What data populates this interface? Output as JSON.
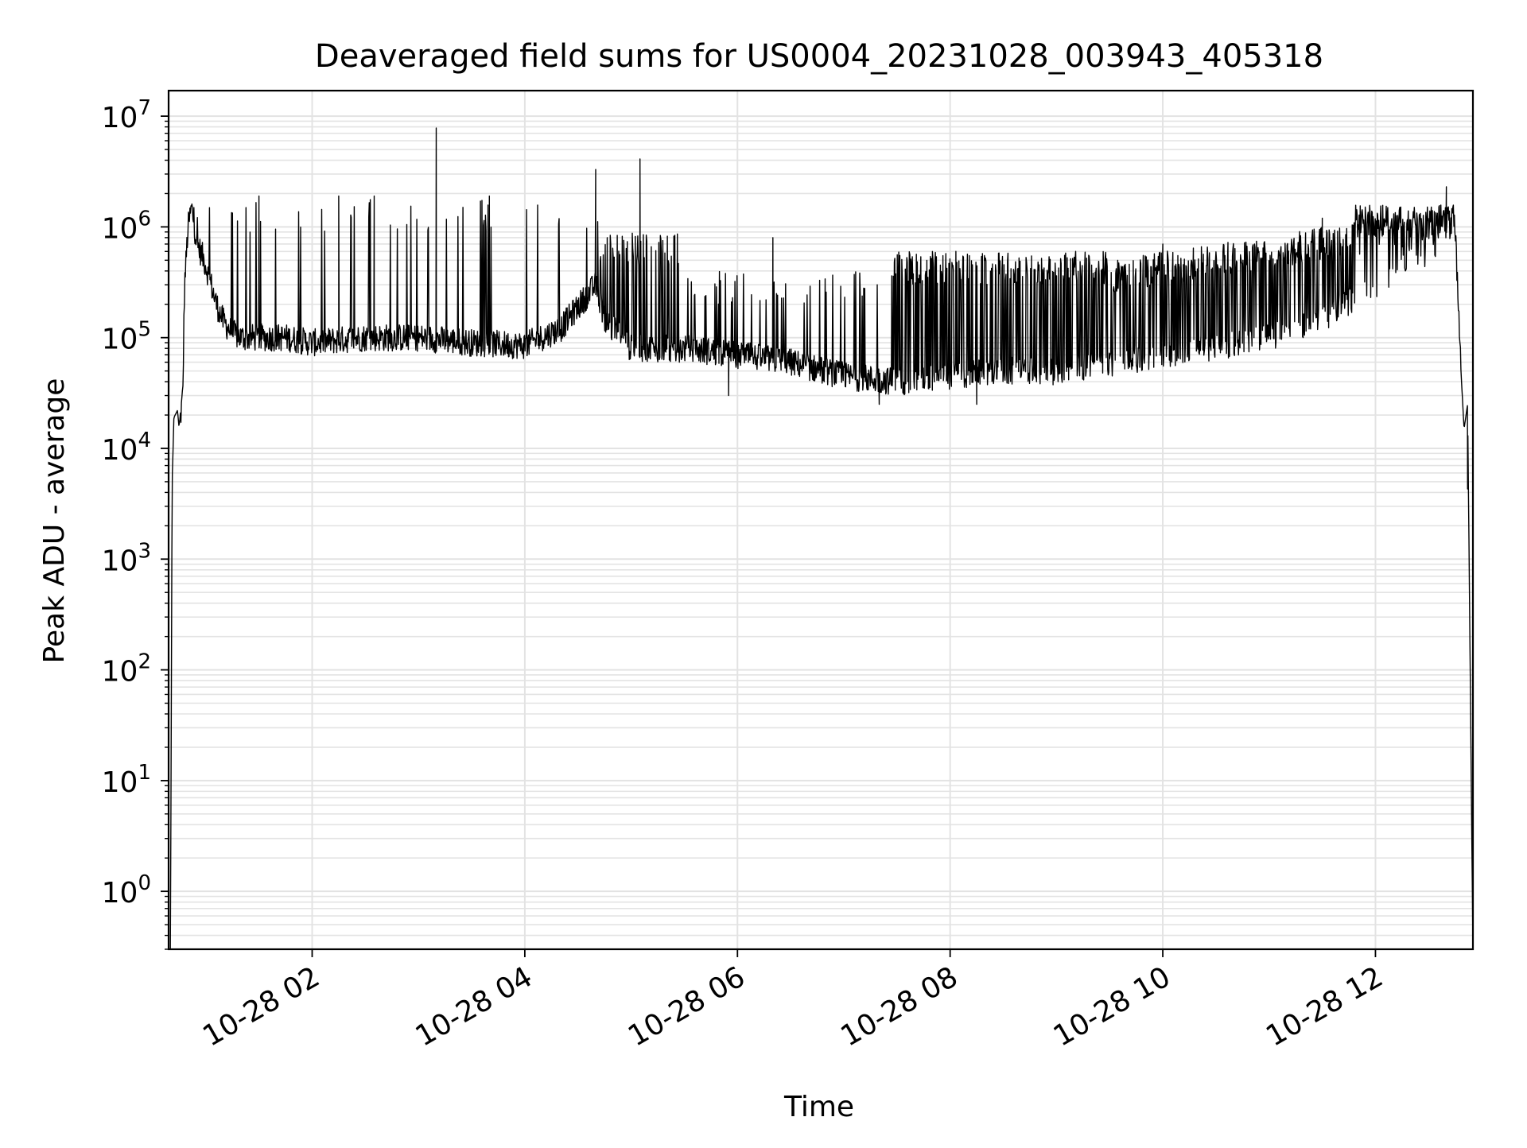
{
  "chart_data": {
    "type": "line",
    "title": "Deaveraged field sums for US0004_20231028_003943_405318",
    "xlabel": "Time",
    "ylabel": "Peak ADU - average",
    "x_is_time": true,
    "xlim": [
      "2023-10-28 00:39",
      "2023-10-28 12:55"
    ],
    "ylim": [
      0.3,
      17000000
    ],
    "yscale": "log",
    "grid": true,
    "minor_grid": true,
    "line_color": "#000000",
    "grid_color": "#e3e3e3",
    "x_tick_labels": [
      "10-28 02",
      "10-28 04",
      "10-28 06",
      "10-28 08",
      "10-28 10",
      "10-28 12"
    ],
    "x_ticks": [
      "2023-10-28 02:00",
      "2023-10-28 04:00",
      "2023-10-28 06:00",
      "2023-10-28 08:00",
      "2023-10-28 10:00",
      "2023-10-28 12:00"
    ],
    "y_ticks": [
      1,
      10,
      100,
      1000,
      10000,
      100000,
      1000000,
      10000000
    ],
    "y_tick_labels": [
      {
        "base": "10",
        "exp": "0"
      },
      {
        "base": "10",
        "exp": "1"
      },
      {
        "base": "10",
        "exp": "2"
      },
      {
        "base": "10",
        "exp": "3"
      },
      {
        "base": "10",
        "exp": "4"
      },
      {
        "base": "10",
        "exp": "5"
      },
      {
        "base": "10",
        "exp": "6"
      },
      {
        "base": "10",
        "exp": "7"
      }
    ],
    "series": [
      {
        "x": [
          "2023-10-28 00:40",
          "2023-10-28 00:41",
          "2023-10-28 00:42",
          "2023-10-28 00:44",
          "2023-10-28 00:45",
          "2023-10-28 00:47",
          "2023-10-28 00:48",
          "2023-10-28 00:50",
          "2023-10-28 00:52",
          "2023-10-28 00:55",
          "2023-10-28 00:58",
          "2023-10-28 01:00",
          "2023-10-28 01:03",
          "2023-10-28 01:06",
          "2023-10-28 01:10",
          "2023-10-28 01:15",
          "2023-10-28 01:20",
          "2023-10-28 01:30",
          "2023-10-28 01:45",
          "2023-10-28 02:00",
          "2023-10-28 02:30",
          "2023-10-28 03:00",
          "2023-10-28 03:15",
          "2023-10-28 03:30",
          "2023-10-28 04:00",
          "2023-10-28 04:20",
          "2023-10-28 04:40",
          "2023-10-28 04:45",
          "2023-10-28 05:00",
          "2023-10-28 05:30",
          "2023-10-28 06:00",
          "2023-10-28 06:30",
          "2023-10-28 07:00",
          "2023-10-28 07:30",
          "2023-10-28 08:00",
          "2023-10-28 08:30",
          "2023-10-28 09:00",
          "2023-10-28 10:00",
          "2023-10-28 11:00",
          "2023-10-28 11:30",
          "2023-10-28 12:00",
          "2023-10-28 12:30",
          "2023-10-28 12:40",
          "2023-10-28 12:45",
          "2023-10-28 12:48",
          "2023-10-28 12:50",
          "2023-10-28 12:52",
          "2023-10-28 12:55"
        ],
        "y": [
          0.3,
          5000,
          19000,
          22000,
          15000,
          30000,
          300000,
          1000000,
          1500000,
          700000,
          550000,
          450000,
          300000,
          200000,
          140000,
          110000,
          100000,
          100000,
          100000,
          90000,
          100000,
          100000,
          95000,
          90000,
          85000,
          120000,
          300000,
          150000,
          80000,
          80000,
          70000,
          60000,
          45000,
          40000,
          45000,
          50000,
          50000,
          70000,
          100000,
          150000,
          300000,
          600000,
          800000,
          1000000,
          60000,
          15000,
          25000,
          0.3
        ],
        "spikes": [
          [
            "2023-10-28 01:30",
            1900000
          ],
          [
            "2023-10-28 02:15",
            1900000
          ],
          [
            "2023-10-28 02:35",
            1900000
          ],
          [
            "2023-10-28 03:10",
            7800000
          ],
          [
            "2023-10-28 03:40",
            1900000
          ],
          [
            "2023-10-28 04:40",
            3300000
          ],
          [
            "2023-10-28 05:05",
            4100000
          ],
          [
            "2023-10-28 06:20",
            800000
          ],
          [
            "2023-10-28 07:50",
            600000
          ],
          [
            "2023-10-28 10:00",
            700000
          ],
          [
            "2023-10-28 11:30",
            1200000
          ],
          [
            "2023-10-28 12:40",
            2300000
          ]
        ],
        "dips": [
          [
            "2023-10-28 05:55",
            30000
          ],
          [
            "2023-10-28 07:20",
            25000
          ],
          [
            "2023-10-28 08:15",
            25000
          ],
          [
            "2023-10-28 12:52",
            4300
          ]
        ]
      }
    ]
  }
}
